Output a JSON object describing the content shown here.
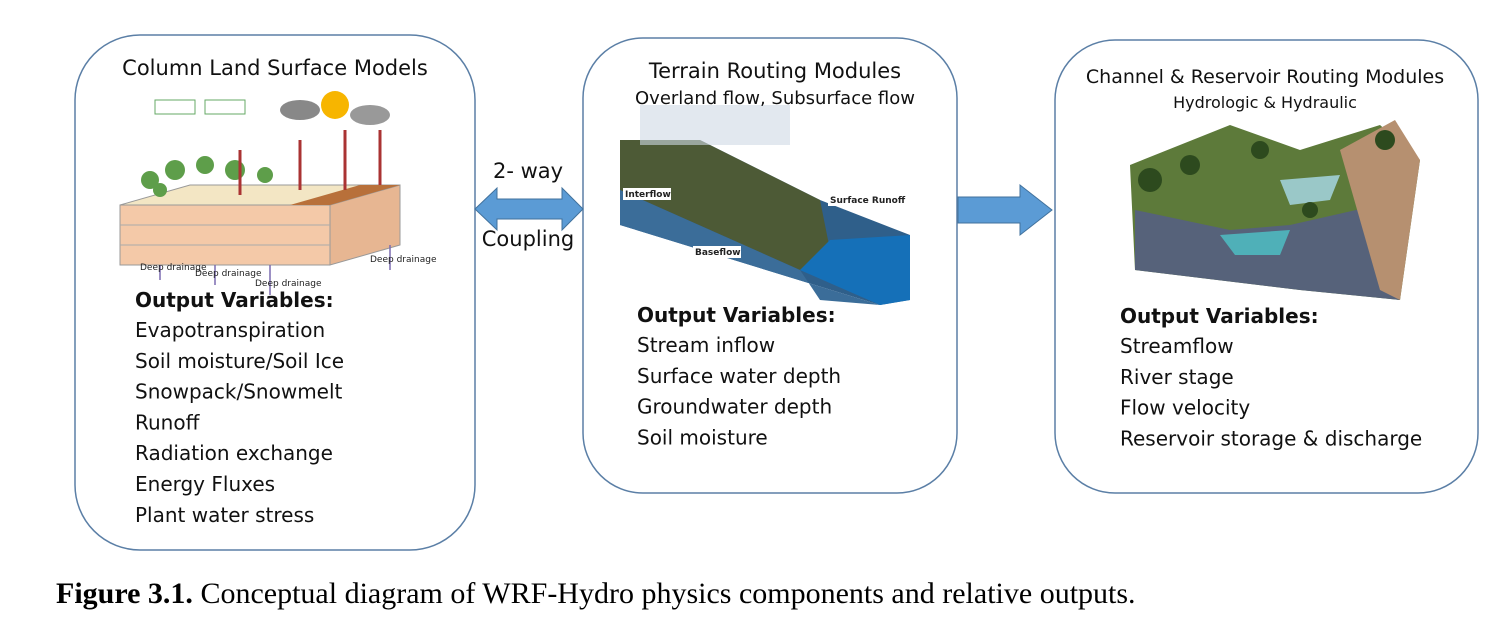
{
  "panels": [
    {
      "title": "Column Land Surface Models",
      "subtitle": null,
      "illustration_labels": [
        "Deep drainage",
        "Deep drainage",
        "Deep drainage",
        "Deep drainage"
      ],
      "outputs_heading": "Output Variables:",
      "outputs": [
        "Evapotranspiration",
        "Soil moisture/Soil Ice",
        "Snowpack/Snowmelt",
        "Runoff",
        "Radiation exchange",
        "Energy Fluxes",
        "Plant water stress"
      ]
    },
    {
      "title": "Terrain Routing Modules",
      "subtitle": "Overland flow, Subsurface flow",
      "illustration_labels": [
        "Interflow",
        "Surface Runoff",
        "Baseflow"
      ],
      "outputs_heading": "Output Variables:",
      "outputs": [
        "Stream inflow",
        "Surface water depth",
        "Groundwater depth",
        "Soil moisture"
      ]
    },
    {
      "title": "Channel & Reservoir Routing Modules",
      "subtitle": "Hydrologic & Hydraulic",
      "illustration_labels": [],
      "outputs_heading": "Output Variables:",
      "outputs": [
        "Streamflow",
        "River stage",
        "Flow velocity",
        "Reservoir storage & discharge"
      ]
    }
  ],
  "coupling": {
    "line1": "2- way",
    "line2": "Coupling"
  },
  "caption": {
    "label": "Figure 3.1.",
    "text": "Conceptual diagram of WRF-Hydro physics components and relative outputs."
  }
}
